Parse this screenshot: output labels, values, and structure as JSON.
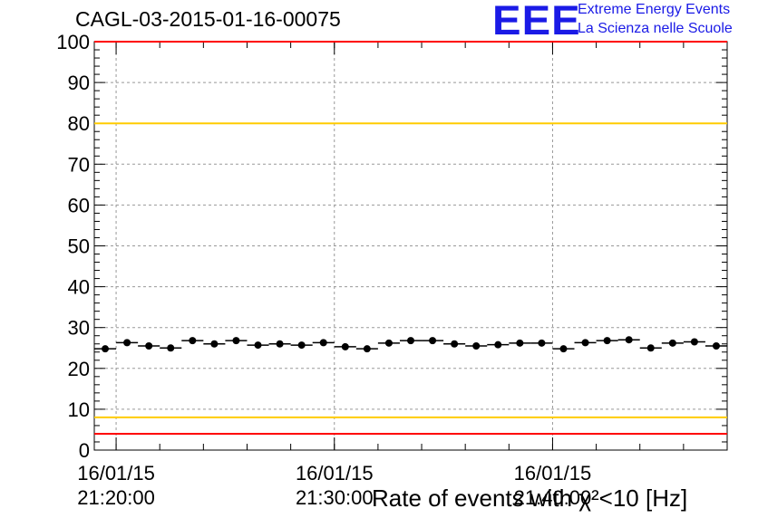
{
  "chart_data": {
    "type": "scatter",
    "title": "CAGL-03-2015-01-16-00075",
    "xlabel": "Rate of events with χ²<10 [Hz]",
    "ylabel": "",
    "ylim": [
      0,
      100
    ],
    "yticks": [
      "0",
      "10",
      "20",
      "30",
      "40",
      "50",
      "60",
      "70",
      "80",
      "90",
      "100"
    ],
    "xlim": [
      "16/01/15 21:19:00",
      "16/01/15 21:48:00"
    ],
    "xticks": [
      {
        "time": "21:20:00",
        "date": "16/01/15",
        "time_label": "21:20:00"
      },
      {
        "time": "21:30:00",
        "date": "16/01/15",
        "time_label": "21:30:00"
      },
      {
        "time": "21:40:00",
        "date": "16/01/15",
        "time_label": "21:40:00"
      }
    ],
    "bin_width_minutes": 1,
    "grid": true,
    "series": [
      {
        "x": [
          "21:19:30",
          "21:20:30",
          "21:21:30",
          "21:22:30",
          "21:23:30",
          "21:24:30",
          "21:25:30",
          "21:26:30",
          "21:27:30",
          "21:28:30",
          "21:29:30",
          "21:30:30",
          "21:31:30",
          "21:32:30",
          "21:33:30",
          "21:34:30",
          "21:35:30",
          "21:36:30",
          "21:37:30",
          "21:38:30",
          "21:39:30",
          "21:40:30",
          "21:41:30",
          "21:42:30",
          "21:43:30",
          "21:44:30",
          "21:45:30",
          "21:46:30",
          "21:47:30"
        ],
        "values": [
          24.8,
          26.3,
          25.5,
          25.0,
          26.8,
          26.0,
          26.8,
          25.7,
          26.0,
          25.7,
          26.3,
          25.3,
          24.8,
          26.2,
          26.8,
          26.8,
          26.0,
          25.5,
          25.8,
          26.2,
          26.2,
          24.8,
          26.3,
          26.8,
          27.0,
          25.0,
          26.2,
          26.5,
          25.5
        ],
        "color": "#000000"
      }
    ],
    "reference_lines": [
      {
        "y": 100,
        "color": "#ff0000"
      },
      {
        "y": 80,
        "color": "#ffcc00"
      },
      {
        "y": 8,
        "color": "#ffcc00"
      },
      {
        "y": 4,
        "color": "#ff0000"
      }
    ]
  },
  "logo": {
    "mark": "EEE",
    "line1": "Extreme Energy Events",
    "line2": "La Scienza nelle Scuole",
    "color": "#1a1ae6"
  }
}
